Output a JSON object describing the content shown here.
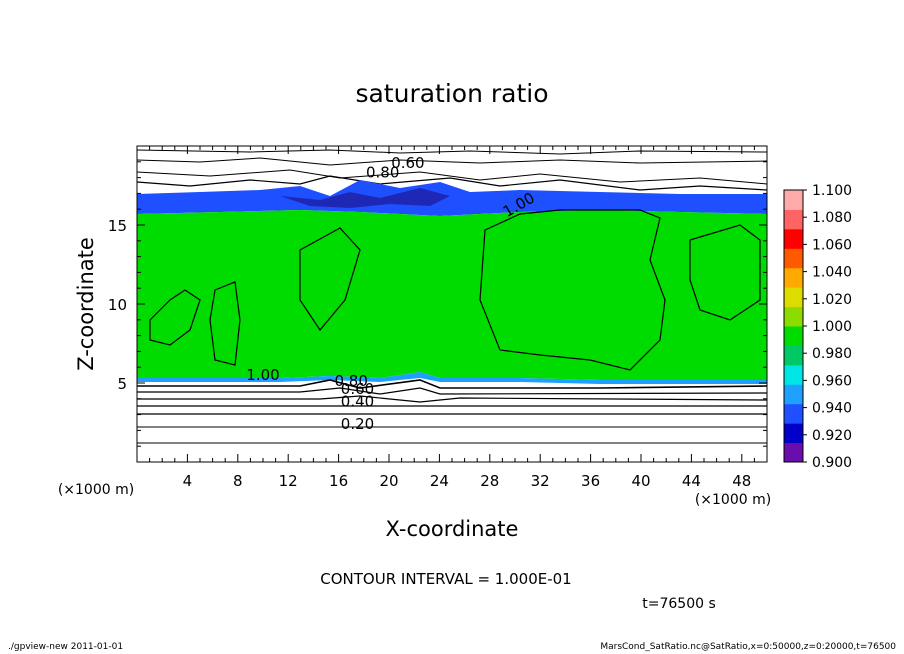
{
  "chart_data": {
    "type": "heatmap",
    "title": "saturation ratio",
    "xlabel": "X-coordinate",
    "ylabel": "Z-coordinate",
    "x_unit_note": "(×1000 m)",
    "z_unit_note": "(×1000 m)",
    "xlim": [
      0,
      50
    ],
    "ylim": [
      0,
      20
    ],
    "x_ticks": [
      "4",
      "8",
      "12",
      "16",
      "20",
      "24",
      "28",
      "32",
      "36",
      "40",
      "44",
      "48"
    ],
    "y_ticks": [
      "5",
      "10",
      "15"
    ],
    "colorbar": {
      "min": 0.9,
      "max": 1.1,
      "labels": [
        "1.100",
        "1.080",
        "1.060",
        "1.040",
        "1.020",
        "1.000",
        "0.980",
        "0.960",
        "0.940",
        "0.920",
        "0.900"
      ],
      "colors": [
        "#6a0dad",
        "#0000c8",
        "#1e50ff",
        "#1ea0ff",
        "#00e6e6",
        "#00c864",
        "#00dc00",
        "#8cdc00",
        "#dcdc00",
        "#ffaa00",
        "#ff5a00",
        "#ff0000",
        "#ff6464",
        "#ffaaaa"
      ]
    },
    "contour_labels": [
      "0.60",
      "0.80",
      "1.00",
      "1.00",
      "0.80",
      "0.60",
      "0.40",
      "0.20"
    ],
    "contour_interval_text": "CONTOUR INTERVAL = 1.000E-01",
    "time_text": "t=76500 s",
    "colors": {
      "saturated": "#00dc00",
      "near_saturated": "#1e50ff",
      "background": "#ffffff"
    }
  },
  "footer": {
    "left": "./gpview-new  2011-01-01",
    "right": "MarsCond_SatRatio.nc@SatRatio,x=0:50000,z=0:20000,t=76500"
  }
}
